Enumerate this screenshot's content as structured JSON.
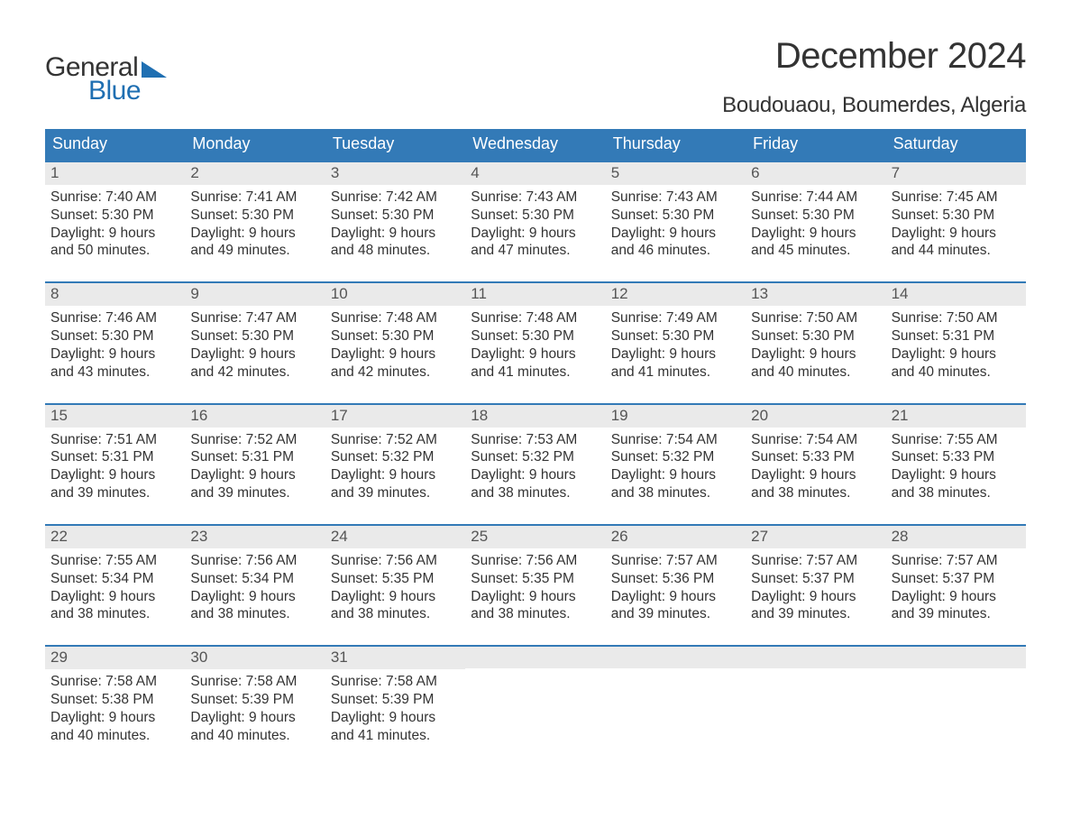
{
  "brand": {
    "word1": "General",
    "word2": "Blue",
    "accent_color": "#1f6fb2"
  },
  "title": "December 2024",
  "location": "Boudouaou, Boumerdes, Algeria",
  "colors": {
    "header_bg": "#337ab7",
    "header_text": "#ffffff",
    "daynum_bg": "#eaeaea",
    "week_border": "#337ab7",
    "body_bg": "#ffffff",
    "text": "#333333"
  },
  "typography": {
    "title_fontsize": 40,
    "location_fontsize": 24,
    "dayheader_fontsize": 18,
    "daynum_fontsize": 17,
    "body_fontsize": 15.5,
    "font_family": "Arial"
  },
  "day_names": [
    "Sunday",
    "Monday",
    "Tuesday",
    "Wednesday",
    "Thursday",
    "Friday",
    "Saturday"
  ],
  "labels": {
    "sunrise": "Sunrise:",
    "sunset": "Sunset:",
    "daylight": "Daylight:"
  },
  "days": [
    {
      "n": "1",
      "sunrise": "7:40 AM",
      "sunset": "5:30 PM",
      "daylight_a": "9 hours",
      "daylight_b": "and 50 minutes."
    },
    {
      "n": "2",
      "sunrise": "7:41 AM",
      "sunset": "5:30 PM",
      "daylight_a": "9 hours",
      "daylight_b": "and 49 minutes."
    },
    {
      "n": "3",
      "sunrise": "7:42 AM",
      "sunset": "5:30 PM",
      "daylight_a": "9 hours",
      "daylight_b": "and 48 minutes."
    },
    {
      "n": "4",
      "sunrise": "7:43 AM",
      "sunset": "5:30 PM",
      "daylight_a": "9 hours",
      "daylight_b": "and 47 minutes."
    },
    {
      "n": "5",
      "sunrise": "7:43 AM",
      "sunset": "5:30 PM",
      "daylight_a": "9 hours",
      "daylight_b": "and 46 minutes."
    },
    {
      "n": "6",
      "sunrise": "7:44 AM",
      "sunset": "5:30 PM",
      "daylight_a": "9 hours",
      "daylight_b": "and 45 minutes."
    },
    {
      "n": "7",
      "sunrise": "7:45 AM",
      "sunset": "5:30 PM",
      "daylight_a": "9 hours",
      "daylight_b": "and 44 minutes."
    },
    {
      "n": "8",
      "sunrise": "7:46 AM",
      "sunset": "5:30 PM",
      "daylight_a": "9 hours",
      "daylight_b": "and 43 minutes."
    },
    {
      "n": "9",
      "sunrise": "7:47 AM",
      "sunset": "5:30 PM",
      "daylight_a": "9 hours",
      "daylight_b": "and 42 minutes."
    },
    {
      "n": "10",
      "sunrise": "7:48 AM",
      "sunset": "5:30 PM",
      "daylight_a": "9 hours",
      "daylight_b": "and 42 minutes."
    },
    {
      "n": "11",
      "sunrise": "7:48 AM",
      "sunset": "5:30 PM",
      "daylight_a": "9 hours",
      "daylight_b": "and 41 minutes."
    },
    {
      "n": "12",
      "sunrise": "7:49 AM",
      "sunset": "5:30 PM",
      "daylight_a": "9 hours",
      "daylight_b": "and 41 minutes."
    },
    {
      "n": "13",
      "sunrise": "7:50 AM",
      "sunset": "5:30 PM",
      "daylight_a": "9 hours",
      "daylight_b": "and 40 minutes."
    },
    {
      "n": "14",
      "sunrise": "7:50 AM",
      "sunset": "5:31 PM",
      "daylight_a": "9 hours",
      "daylight_b": "and 40 minutes."
    },
    {
      "n": "15",
      "sunrise": "7:51 AM",
      "sunset": "5:31 PM",
      "daylight_a": "9 hours",
      "daylight_b": "and 39 minutes."
    },
    {
      "n": "16",
      "sunrise": "7:52 AM",
      "sunset": "5:31 PM",
      "daylight_a": "9 hours",
      "daylight_b": "and 39 minutes."
    },
    {
      "n": "17",
      "sunrise": "7:52 AM",
      "sunset": "5:32 PM",
      "daylight_a": "9 hours",
      "daylight_b": "and 39 minutes."
    },
    {
      "n": "18",
      "sunrise": "7:53 AM",
      "sunset": "5:32 PM",
      "daylight_a": "9 hours",
      "daylight_b": "and 38 minutes."
    },
    {
      "n": "19",
      "sunrise": "7:54 AM",
      "sunset": "5:32 PM",
      "daylight_a": "9 hours",
      "daylight_b": "and 38 minutes."
    },
    {
      "n": "20",
      "sunrise": "7:54 AM",
      "sunset": "5:33 PM",
      "daylight_a": "9 hours",
      "daylight_b": "and 38 minutes."
    },
    {
      "n": "21",
      "sunrise": "7:55 AM",
      "sunset": "5:33 PM",
      "daylight_a": "9 hours",
      "daylight_b": "and 38 minutes."
    },
    {
      "n": "22",
      "sunrise": "7:55 AM",
      "sunset": "5:34 PM",
      "daylight_a": "9 hours",
      "daylight_b": "and 38 minutes."
    },
    {
      "n": "23",
      "sunrise": "7:56 AM",
      "sunset": "5:34 PM",
      "daylight_a": "9 hours",
      "daylight_b": "and 38 minutes."
    },
    {
      "n": "24",
      "sunrise": "7:56 AM",
      "sunset": "5:35 PM",
      "daylight_a": "9 hours",
      "daylight_b": "and 38 minutes."
    },
    {
      "n": "25",
      "sunrise": "7:56 AM",
      "sunset": "5:35 PM",
      "daylight_a": "9 hours",
      "daylight_b": "and 38 minutes."
    },
    {
      "n": "26",
      "sunrise": "7:57 AM",
      "sunset": "5:36 PM",
      "daylight_a": "9 hours",
      "daylight_b": "and 39 minutes."
    },
    {
      "n": "27",
      "sunrise": "7:57 AM",
      "sunset": "5:37 PM",
      "daylight_a": "9 hours",
      "daylight_b": "and 39 minutes."
    },
    {
      "n": "28",
      "sunrise": "7:57 AM",
      "sunset": "5:37 PM",
      "daylight_a": "9 hours",
      "daylight_b": "and 39 minutes."
    },
    {
      "n": "29",
      "sunrise": "7:58 AM",
      "sunset": "5:38 PM",
      "daylight_a": "9 hours",
      "daylight_b": "and 40 minutes."
    },
    {
      "n": "30",
      "sunrise": "7:58 AM",
      "sunset": "5:39 PM",
      "daylight_a": "9 hours",
      "daylight_b": "and 40 minutes."
    },
    {
      "n": "31",
      "sunrise": "7:58 AM",
      "sunset": "5:39 PM",
      "daylight_a": "9 hours",
      "daylight_b": "and 41 minutes."
    }
  ],
  "grid": {
    "columns": 7,
    "weeks": 5,
    "trailing_empty_last_week": 4
  }
}
